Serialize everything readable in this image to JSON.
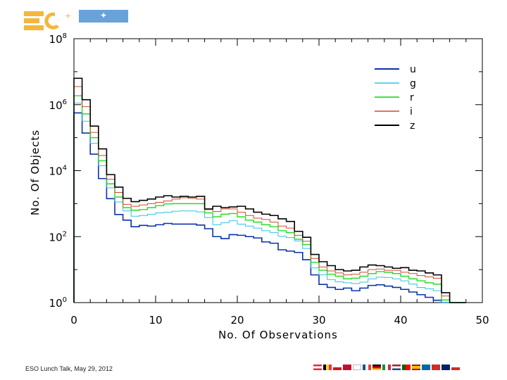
{
  "footer": {
    "text": "ESO Lunch Talk,  May 29, 2012"
  },
  "chart_data": {
    "type": "line",
    "xlabel": "No. Of Observations",
    "ylabel": "No. Of Objects",
    "xlim": [
      0,
      50
    ],
    "ylim_log10": [
      0,
      8
    ],
    "y_scale": "log",
    "x_ticks": [
      "0",
      "10",
      "20",
      "30",
      "40",
      "50"
    ],
    "y_ticks": [
      {
        "exp": 0,
        "label": "10",
        "sup": "0"
      },
      {
        "exp": 2,
        "label": "10",
        "sup": "2"
      },
      {
        "exp": 4,
        "label": "10",
        "sup": "4"
      },
      {
        "exp": 6,
        "label": "10",
        "sup": "6"
      },
      {
        "exp": 8,
        "label": "10",
        "sup": "8"
      }
    ],
    "legend_position": "top-right",
    "x": [
      0,
      1,
      2,
      3,
      4,
      5,
      6,
      7,
      8,
      9,
      10,
      11,
      12,
      13,
      14,
      15,
      16,
      17,
      18,
      19,
      20,
      21,
      22,
      23,
      24,
      25,
      26,
      27,
      28,
      29,
      30,
      31,
      32,
      33,
      34,
      35,
      36,
      37,
      38,
      39,
      40,
      41,
      42,
      43,
      44,
      45,
      46,
      47
    ],
    "series": [
      {
        "name": "u",
        "color": "#0a32aa",
        "width": 1.6,
        "values": [
          5.75,
          5.14,
          4.5,
          3.76,
          3.15,
          2.67,
          2.5,
          2.3,
          2.34,
          2.32,
          2.36,
          2.4,
          2.38,
          2.38,
          2.38,
          2.35,
          2.24,
          2.0,
          1.94,
          2.06,
          2.04,
          2.0,
          1.96,
          1.84,
          1.8,
          1.6,
          1.56,
          1.52,
          1.3,
          0.84,
          0.55,
          0.46,
          0.4,
          0.44,
          0.36,
          0.44,
          0.52,
          0.54,
          0.5,
          0.46,
          0.4,
          0.32,
          0.24,
          0.16,
          0.07,
          -1.0,
          -3.0,
          -3.0
        ]
      },
      {
        "name": "g",
        "color": "#34c2e6",
        "width": 1.0,
        "values": [
          6.05,
          5.5,
          4.83,
          4.15,
          3.48,
          3.05,
          2.78,
          2.62,
          2.64,
          2.68,
          2.72,
          2.74,
          2.77,
          2.78,
          2.78,
          2.75,
          2.58,
          2.36,
          2.42,
          2.48,
          2.38,
          2.32,
          2.26,
          2.18,
          2.12,
          2.01,
          1.97,
          1.87,
          1.64,
          1.05,
          0.84,
          0.7,
          0.63,
          0.6,
          0.58,
          0.62,
          0.72,
          0.77,
          0.76,
          0.72,
          0.66,
          0.56,
          0.46,
          0.42,
          0.36,
          -0.11,
          -0.5,
          -3.0
        ]
      },
      {
        "name": "r",
        "color": "#27dc27",
        "width": 1.4,
        "values": [
          6.27,
          5.72,
          5.0,
          4.3,
          3.6,
          3.2,
          2.88,
          2.8,
          2.82,
          2.88,
          2.94,
          2.99,
          3.0,
          3.0,
          3.0,
          3.0,
          2.72,
          2.6,
          2.68,
          2.7,
          2.6,
          2.5,
          2.44,
          2.36,
          2.3,
          2.18,
          2.12,
          1.92,
          1.76,
          1.22,
          0.98,
          0.86,
          0.8,
          0.72,
          0.74,
          0.8,
          0.88,
          0.94,
          0.92,
          0.88,
          0.8,
          0.72,
          0.66,
          0.6,
          0.56,
          0.08,
          -0.36,
          -3.0
        ]
      },
      {
        "name": "i",
        "color": "#cd4a2e",
        "width": 1.0,
        "values": [
          6.55,
          5.94,
          5.16,
          4.46,
          3.74,
          3.34,
          2.98,
          2.92,
          2.96,
          3.0,
          3.04,
          3.08,
          3.14,
          3.18,
          3.16,
          3.14,
          2.82,
          2.76,
          2.84,
          2.84,
          2.74,
          2.64,
          2.56,
          2.52,
          2.44,
          2.32,
          2.26,
          2.04,
          1.86,
          1.34,
          1.08,
          0.96,
          0.9,
          0.84,
          0.86,
          0.92,
          1.0,
          1.02,
          0.98,
          0.98,
          0.92,
          0.88,
          0.82,
          0.78,
          0.74,
          0.2,
          -0.2,
          -0.56
        ]
      },
      {
        "name": "z",
        "color": "#000000",
        "width": 1.6,
        "values": [
          6.8,
          6.15,
          5.35,
          4.66,
          3.88,
          3.5,
          3.16,
          3.06,
          3.1,
          3.14,
          3.2,
          3.24,
          3.2,
          3.22,
          3.2,
          3.22,
          2.84,
          2.92,
          2.88,
          2.9,
          2.92,
          2.84,
          2.74,
          2.68,
          2.64,
          2.54,
          2.46,
          2.16,
          1.98,
          1.46,
          1.24,
          1.12,
          1.0,
          0.96,
          0.98,
          1.08,
          1.14,
          1.12,
          1.08,
          1.04,
          1.06,
          0.98,
          0.96,
          0.9,
          0.84,
          0.3,
          -3.0,
          -3.0
        ]
      }
    ]
  }
}
